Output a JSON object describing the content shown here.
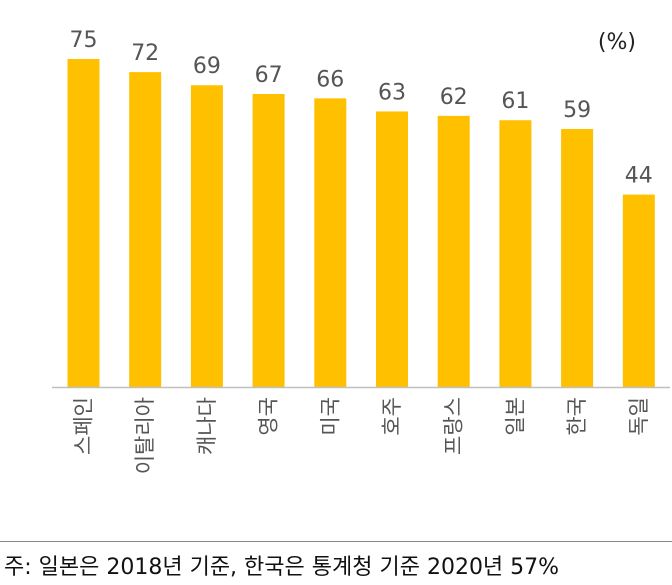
{
  "chart_data": {
    "type": "bar",
    "categories": [
      "스페인",
      "이탈리아",
      "캐나다",
      "영국",
      "미국",
      "호주",
      "프랑스",
      "일본",
      "한국",
      "독일"
    ],
    "values": [
      75,
      72,
      69,
      67,
      66,
      63,
      62,
      61,
      59,
      44
    ],
    "unit_label": "(%)",
    "ylim": [
      0,
      75
    ],
    "grid": false,
    "bar_color": "#FFC000",
    "axis_color": "#BFBFBF"
  },
  "footnote": "주: 일본은 2018년 기준, 한국은 통계청 기준 2020년 57%"
}
